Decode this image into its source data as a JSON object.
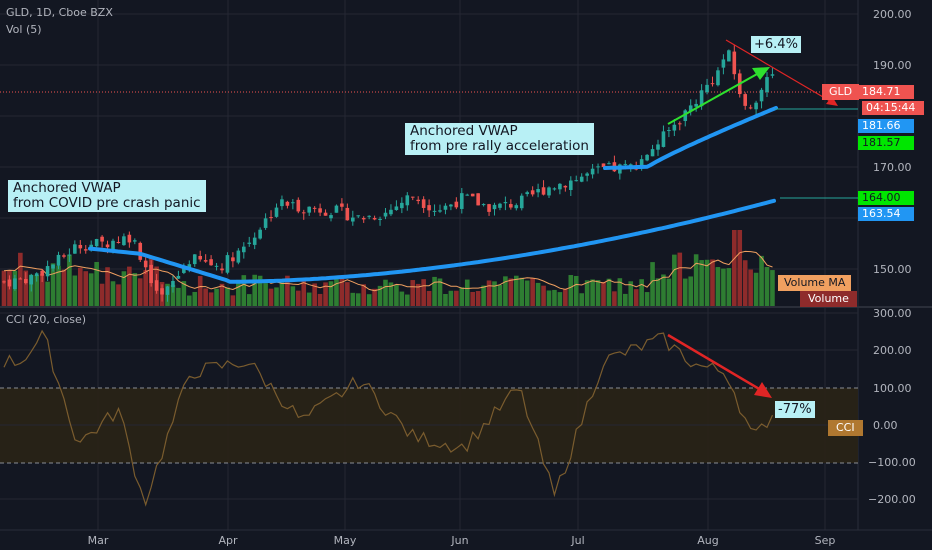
{
  "header": {
    "symbol_line": "GLD, 1D, Cboe BZX",
    "vol_line": "Vol (5)",
    "cci_line": "CCI (20, close)"
  },
  "annotations": {
    "covid": [
      "Anchored VWAP",
      "from COVID pre crash panic"
    ],
    "rally": [
      "Anchored VWAP",
      "from pre rally acceleration"
    ],
    "price_change": "+6.4%",
    "cci_change": "-77%"
  },
  "price_tags": {
    "gld_label": "GLD",
    "last": "184.71",
    "countdown": "04:15:44",
    "vwap_rally": "181.66",
    "green_rally": "181.57",
    "green_covid": "164.00",
    "vwap_covid": "163.54"
  },
  "volume_tags": {
    "ma": "Volume MA",
    "vol": "Volume"
  },
  "cci_tag": "CCI",
  "colors": {
    "bg": "#131722",
    "up": "#26a69a",
    "down": "#ef5350",
    "vwap": "#2196f3",
    "vol_up": "#2e7d32",
    "vol_down": "#8e2b2b",
    "cci_line": "#7a5c2e",
    "arrow_red": "#e02525",
    "arrow_green": "#2ee02e"
  },
  "chart_data": [
    {
      "type": "candlestick",
      "series": [
        {
          "name": "GLD",
          "values_sampled_close": [
            {
              "x": "2020-02-03",
              "y": 147.5
            },
            {
              "x": "2020-02-10",
              "y": 148.3
            },
            {
              "x": "2020-02-18",
              "y": 151.5
            },
            {
              "x": "2020-02-24",
              "y": 154.7
            },
            {
              "x": "2020-03-02",
              "y": 155.0
            },
            {
              "x": "2020-03-09",
              "y": 156.5
            },
            {
              "x": "2020-03-16",
              "y": 144.0
            },
            {
              "x": "2020-03-23",
              "y": 152.0
            },
            {
              "x": "2020-03-30",
              "y": 150.5
            },
            {
              "x": "2020-04-06",
              "y": 155.0
            },
            {
              "x": "2020-04-14",
              "y": 163.0
            },
            {
              "x": "2020-04-21",
              "y": 162.0
            },
            {
              "x": "2020-04-28",
              "y": 161.5
            },
            {
              "x": "2020-05-05",
              "y": 160.0
            },
            {
              "x": "2020-05-12",
              "y": 161.0
            },
            {
              "x": "2020-05-19",
              "y": 164.5
            },
            {
              "x": "2020-05-26",
              "y": 161.5
            },
            {
              "x": "2020-06-02",
              "y": 164.0
            },
            {
              "x": "2020-06-09",
              "y": 162.0
            },
            {
              "x": "2020-06-16",
              "y": 163.0
            },
            {
              "x": "2020-06-23",
              "y": 166.0
            },
            {
              "x": "2020-06-30",
              "y": 167.5
            },
            {
              "x": "2020-07-07",
              "y": 169.5
            },
            {
              "x": "2020-07-14",
              "y": 170.0
            },
            {
              "x": "2020-07-21",
              "y": 175.5
            },
            {
              "x": "2020-07-28",
              "y": 182.0
            },
            {
              "x": "2020-08-04",
              "y": 189.0
            },
            {
              "x": "2020-08-06",
              "y": 193.0
            },
            {
              "x": "2020-08-11",
              "y": 181.0
            },
            {
              "x": "2020-08-14",
              "y": 184.0
            },
            {
              "x": "2020-08-18",
              "y": 188.0
            },
            {
              "x": "2020-08-19",
              "y": 184.71
            }
          ]
        },
        {
          "name": "Anchored VWAP (COVID)",
          "end_value": 163.54
        },
        {
          "name": "Anchored VWAP (rally)",
          "end_value": 181.66
        }
      ],
      "y_axis_ticks": [
        "150.00",
        "160.00",
        "170.00",
        "180.00",
        "190.00",
        "200.00"
      ],
      "ylim": [
        145,
        202
      ],
      "x_axis_ticks": [
        "Mar",
        "Apr",
        "May",
        "Jun",
        "Jul",
        "Aug",
        "Sep"
      ],
      "last_price": 184.71
    },
    {
      "type": "line",
      "series": [
        {
          "name": "CCI (20, close)",
          "values_sampled": [
            {
              "x": "2020-02-07",
              "y": 170
            },
            {
              "x": "2020-02-14",
              "y": 240
            },
            {
              "x": "2020-02-24",
              "y": -50
            },
            {
              "x": "2020-03-06",
              "y": 40
            },
            {
              "x": "2020-03-12",
              "y": -210
            },
            {
              "x": "2020-03-23",
              "y": 140
            },
            {
              "x": "2020-04-06",
              "y": 170
            },
            {
              "x": "2020-04-20",
              "y": 10
            },
            {
              "x": "2020-05-05",
              "y": 120
            },
            {
              "x": "2020-05-19",
              "y": -30
            },
            {
              "x": "2020-06-02",
              "y": -60
            },
            {
              "x": "2020-06-16",
              "y": 100
            },
            {
              "x": "2020-06-25",
              "y": -190
            },
            {
              "x": "2020-07-07",
              "y": 170
            },
            {
              "x": "2020-07-21",
              "y": 230
            },
            {
              "x": "2020-07-29",
              "y": 160
            },
            {
              "x": "2020-08-06",
              "y": 140
            },
            {
              "x": "2020-08-13",
              "y": -40
            },
            {
              "x": "2020-08-18",
              "y": 30
            },
            {
              "x": "2020-08-19",
              "y": 0
            }
          ]
        }
      ],
      "y_axis_ticks": [
        "300.00",
        "200.00",
        "100.00",
        "0.00",
        "−100.00",
        "−200.00"
      ],
      "ylim": [
        -250,
        300
      ],
      "bands": [
        100,
        -100
      ]
    }
  ]
}
